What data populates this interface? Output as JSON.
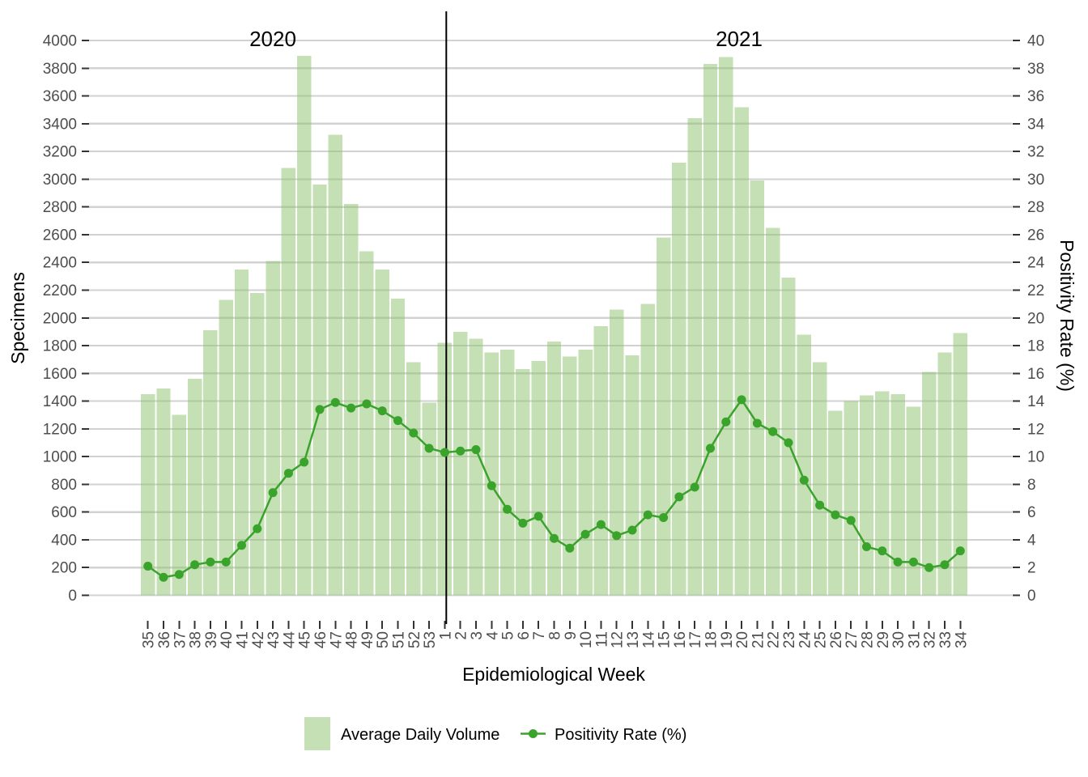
{
  "chart_data": {
    "type": "bar+line",
    "xlabel": "Epidemiological Week",
    "ylabel_left": "Specimens",
    "ylabel_right": "Positivity Rate (%)",
    "year_labels": [
      "2020",
      "2021"
    ],
    "separator_index": 19,
    "grid": "horizontal",
    "legend_position": "bottom",
    "left_ylim": [
      0,
      4000
    ],
    "right_ylim": [
      0,
      40
    ],
    "left_ticks": [
      "0",
      "200",
      "400",
      "600",
      "800",
      "1000",
      "1200",
      "1400",
      "1600",
      "1800",
      "2000",
      "2200",
      "2400",
      "2600",
      "2800",
      "3000",
      "3200",
      "3400",
      "3600",
      "3800",
      "4000"
    ],
    "right_ticks": [
      "0",
      "2",
      "4",
      "6",
      "8",
      "10",
      "12",
      "14",
      "16",
      "18",
      "20",
      "22",
      "24",
      "26",
      "28",
      "30",
      "32",
      "34",
      "36",
      "38",
      "40"
    ],
    "categories": [
      "35",
      "36",
      "37",
      "38",
      "39",
      "40",
      "41",
      "42",
      "43",
      "44",
      "45",
      "46",
      "47",
      "48",
      "49",
      "50",
      "51",
      "52",
      "53",
      "1",
      "2",
      "3",
      "4",
      "5",
      "6",
      "7",
      "8",
      "9",
      "10",
      "11",
      "12",
      "13",
      "14",
      "15",
      "16",
      "17",
      "18",
      "19",
      "20",
      "21",
      "22",
      "23",
      "24",
      "25",
      "26",
      "27",
      "28",
      "29",
      "30",
      "31",
      "32",
      "33",
      "34"
    ],
    "series": [
      {
        "name": "Average Daily Volume",
        "type": "bar",
        "axis": "left",
        "values": [
          1450,
          1490,
          1300,
          1560,
          1910,
          2130,
          2350,
          2180,
          2410,
          3080,
          3890,
          2960,
          3320,
          2820,
          2480,
          2350,
          2140,
          1680,
          1390,
          1820,
          1900,
          1850,
          1750,
          1770,
          1630,
          1690,
          1830,
          1720,
          1770,
          1940,
          2060,
          1730,
          2100,
          2580,
          3120,
          3440,
          3830,
          3880,
          3520,
          2990,
          2650,
          2290,
          1880,
          1680,
          1330,
          1400,
          1440,
          1470,
          1450,
          1360,
          1610,
          1750,
          1890
        ]
      },
      {
        "name": "Positivity Rate (%)",
        "type": "line",
        "axis": "right",
        "values": [
          2.1,
          1.3,
          1.5,
          2.2,
          2.4,
          2.4,
          3.6,
          4.8,
          7.4,
          8.8,
          9.6,
          13.4,
          13.9,
          13.5,
          13.8,
          13.3,
          12.6,
          11.7,
          10.6,
          10.3,
          10.4,
          10.5,
          7.9,
          6.2,
          5.2,
          5.7,
          4.1,
          3.4,
          4.4,
          5.1,
          4.3,
          4.7,
          5.8,
          5.6,
          7.1,
          7.8,
          10.6,
          12.5,
          14.1,
          12.4,
          11.8,
          11.0,
          8.3,
          6.5,
          5.8,
          5.4,
          3.5,
          3.2,
          2.4,
          2.4,
          2.0,
          2.2,
          3.2
        ]
      }
    ],
    "colors": {
      "bar_fill": "#8cc169",
      "bar_opacity": "0.5",
      "line": "#3aa32b",
      "grid": "#d2d2d2",
      "separator": "#000000",
      "tick_mark": "#333333",
      "tick_text": "#4d4d4d"
    }
  }
}
